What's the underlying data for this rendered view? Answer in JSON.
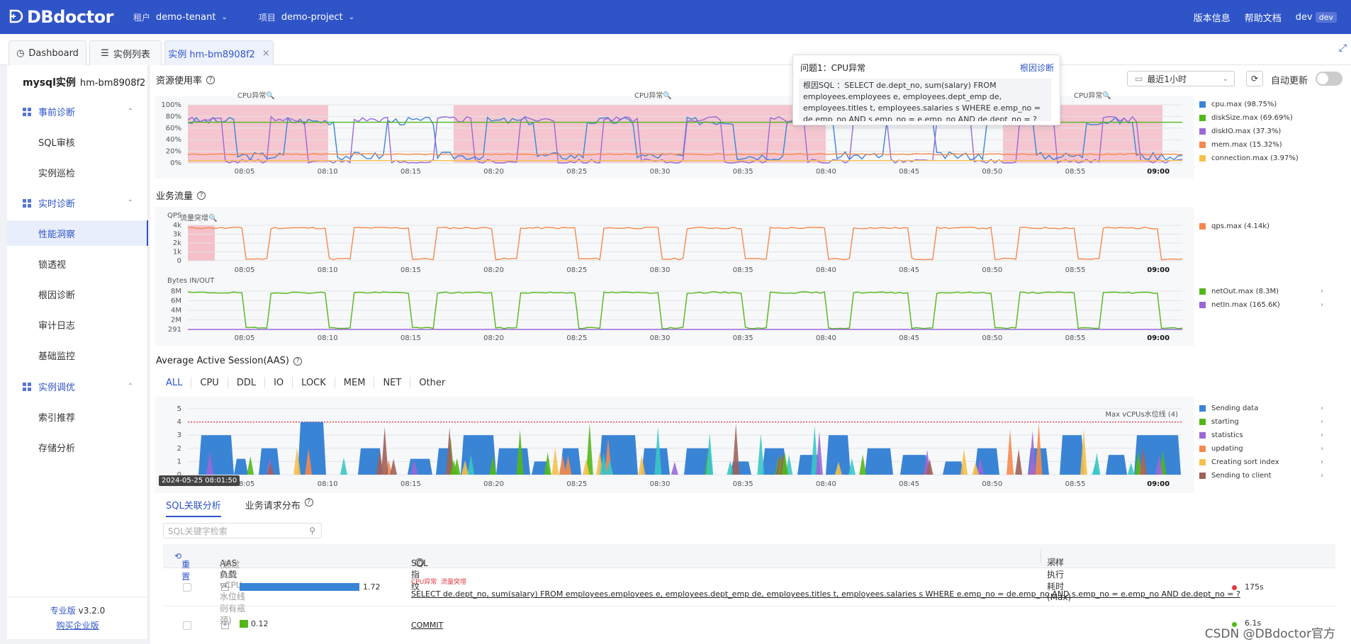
{
  "header": {
    "logo": "DBdoctor",
    "tenant_label": "租户",
    "tenant": "demo-tenant",
    "project_label": "项目",
    "project": "demo-project",
    "version_info": "版本信息",
    "help": "帮助文档",
    "user": "dev",
    "user_badge": "dev"
  },
  "tabs": [
    {
      "label": "Dashboard"
    },
    {
      "label": "实例列表"
    },
    {
      "label": "实例 hm-bm8908f2"
    }
  ],
  "sidebar": {
    "instance_label": "mysql实例",
    "instance_id": "hm-bm8908f2",
    "groups": [
      {
        "label": "事前诊断"
      },
      {
        "label": "实时诊断"
      },
      {
        "label": "实例调优"
      }
    ],
    "items": [
      "SQL审核",
      "实例巡检",
      "性能洞察",
      "锁透视",
      "根因诊断",
      "审计日志",
      "基础监控",
      "索引推荐",
      "存储分析"
    ],
    "edition": "专业版",
    "version": "v3.2.0",
    "buy": "购买企业版"
  },
  "resource": {
    "title": "资源使用率",
    "anomaly_label": "CPU异常",
    "yticks": [
      "100%",
      "80%",
      "60%",
      "40%",
      "20%",
      "0%"
    ],
    "legend": [
      {
        "label": "cpu.max (98.75%)",
        "color": "#3a84d6"
      },
      {
        "label": "diskSize.max (69.69%)",
        "color": "#52b71a"
      },
      {
        "label": "diskIO.max (37.3%)",
        "color": "#9a68d8"
      },
      {
        "label": "mem.max (15.32%)",
        "color": "#f5894d"
      },
      {
        "label": "connection.max (3.97%)",
        "color": "#f5c04d"
      }
    ]
  },
  "xticks": [
    "08:05",
    "08:10",
    "08:15",
    "08:20",
    "08:25",
    "08:30",
    "08:35",
    "08:40",
    "08:45",
    "08:50",
    "08:55",
    "09:00"
  ],
  "traffic": {
    "title": "业务流量",
    "qps_label": "QPS",
    "anomaly_label": "流量突增",
    "qps_yticks": [
      "4k",
      "3k",
      "2k",
      "1k",
      "0"
    ],
    "qps_legend": [
      {
        "label": "qps.max (4.14k)",
        "color": "#f5894d"
      }
    ],
    "bytes_label": "Bytes IN/OUT",
    "bytes_yticks": [
      "8M",
      "6M",
      "4M",
      "2M",
      "291"
    ],
    "bytes_legend": [
      {
        "label": "netOut.max (8.3M)",
        "color": "#52b71a"
      },
      {
        "label": "netIn.max (165.6K)",
        "color": "#9a68d8"
      }
    ]
  },
  "aas": {
    "title": "Average Active Session(AAS)",
    "tabs": [
      "ALL",
      "CPU",
      "DDL",
      "IO",
      "LOCK",
      "MEM",
      "NET",
      "Other"
    ],
    "yticks": [
      "5",
      "4",
      "3",
      "2",
      "1",
      "0"
    ],
    "max_line": "Max vCPUs水位线 (4)",
    "timestamp": "2024-05-25 08:01:50",
    "legend": [
      {
        "label": "Sending data",
        "color": "#3a84d6"
      },
      {
        "label": "starting",
        "color": "#52b71a"
      },
      {
        "label": "statistics",
        "color": "#9a68d8"
      },
      {
        "label": "updating",
        "color": "#f5894d"
      },
      {
        "label": "Creating sort index",
        "color": "#f5c04d"
      },
      {
        "label": "Sending to client",
        "color": "#a0615a"
      }
    ]
  },
  "tooltip": {
    "title": "问题1：CPU异常",
    "link": "根因诊断",
    "body": "根因SQL ：SELECT de.dept_no, sum(salary) FROM employees.employees e, employees.dept_emp de, employees.titles t, employees.salaries s WHERE e.emp_no = de.emp_no  AND s.emp_no = e.emp_no AND de.dept_no = ?"
  },
  "controls": {
    "time_range": "最近1小时",
    "auto_refresh": "自动更新"
  },
  "sql": {
    "tabs": [
      "SQL关联分析",
      "业务请求分布"
    ],
    "search_placeholder": "SQL关键字检索",
    "columns": {
      "reset": "重置",
      "aas": "AAS负载",
      "aas_hint": "(超过Max vCPUs水位线则有瓶颈)",
      "fingerprint": "SQL指纹",
      "time": "采样执行耗时 (Max)"
    },
    "rows": [
      {
        "aas": "1.72",
        "aas_frac": 0.86,
        "tags": [
          "CPU异常",
          "流量突增"
        ],
        "sql": "SELECT de.dept_no, sum(salary) FROM employees.employees e, employees.dept_emp de, employees.titles t, employees.salaries s WHERE e.emp_no = de.emp_no AND s.emp_no = e.emp_no AND de.dept_no = ?",
        "time": "175s"
      },
      {
        "aas": "0.12",
        "aas_frac": 0.06,
        "tags": [],
        "sql": "COMMIT",
        "time": "6.1s"
      }
    ]
  },
  "watermark": "CSDN @DBdoctor官方"
}
